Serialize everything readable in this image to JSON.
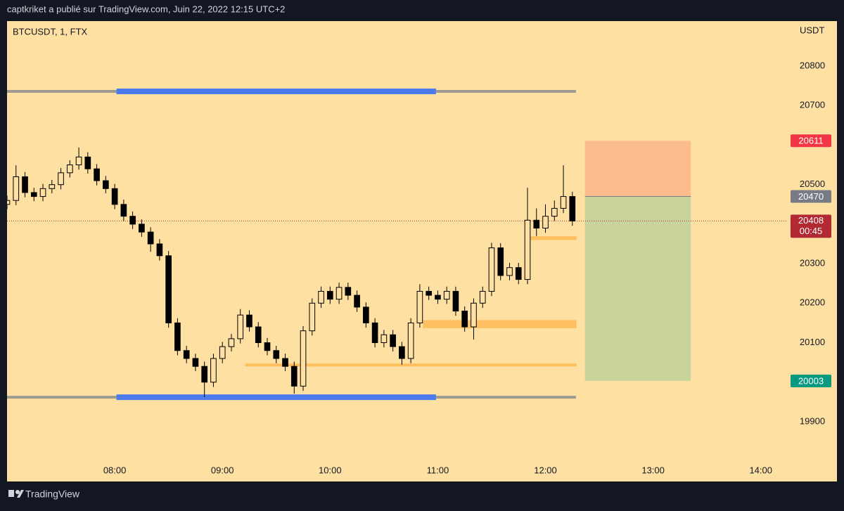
{
  "header": {
    "publisher": "captkriket a publié sur TradingView.com, Juin 22, 2022 12:15 UTC+2"
  },
  "footer": {
    "brand": "TradingView"
  },
  "chart_data": {
    "type": "candlestick",
    "title": "BTCUSDT, 1, FTX",
    "y_axis_label": "USDT",
    "background": "#ffe0a3",
    "candle_color": "#000000",
    "xlim": [
      420,
      855
    ],
    "xticks": [
      {
        "value": 480,
        "label": "08:00"
      },
      {
        "value": 540,
        "label": "09:00"
      },
      {
        "value": 600,
        "label": "10:00"
      },
      {
        "value": 660,
        "label": "11:00"
      },
      {
        "value": 720,
        "label": "12:00"
      },
      {
        "value": 780,
        "label": "13:00"
      },
      {
        "value": 840,
        "label": "14:00"
      }
    ],
    "ylim": [
      19802,
      20914
    ],
    "yticks": [
      19900,
      20100,
      20200,
      20300,
      20500,
      20700,
      20800
    ],
    "x": [
      420,
      425,
      430,
      435,
      440,
      445,
      450,
      455,
      460,
      465,
      470,
      475,
      480,
      485,
      490,
      495,
      500,
      505,
      510,
      515,
      520,
      525,
      530,
      535,
      540,
      545,
      550,
      555,
      560,
      565,
      570,
      575,
      580,
      585,
      590,
      595,
      600,
      605,
      610,
      615,
      620,
      625,
      630,
      635,
      640,
      645,
      650,
      655,
      660,
      665,
      670,
      675,
      680,
      685,
      690,
      695,
      700,
      705,
      710,
      715,
      720,
      725,
      730,
      735
    ],
    "open": [
      20450,
      20460,
      20520,
      20480,
      20470,
      20490,
      20500,
      20530,
      20550,
      20570,
      20540,
      20510,
      20490,
      20450,
      20420,
      20400,
      20380,
      20350,
      20320,
      20150,
      20080,
      20060,
      20040,
      20000,
      20060,
      20090,
      20110,
      20170,
      20140,
      20100,
      20080,
      20060,
      20040,
      19990,
      20130,
      20200,
      20230,
      20210,
      20240,
      20220,
      20190,
      20150,
      20100,
      20120,
      20090,
      20060,
      20150,
      20230,
      20220,
      20210,
      20230,
      20180,
      20140,
      20200,
      20230,
      20340,
      20270,
      20290,
      20260,
      20410,
      20390,
      20420,
      20440,
      20470
    ],
    "high": [
      20472,
      20549,
      20532,
      20492,
      20502,
      20512,
      20542,
      20562,
      20594,
      20582,
      20552,
      20522,
      20502,
      20462,
      20432,
      20412,
      20392,
      20362,
      20332,
      20162,
      20092,
      20072,
      20052,
      20072,
      20102,
      20122,
      20185,
      20182,
      20152,
      20112,
      20092,
      20072,
      20052,
      20142,
      20212,
      20242,
      20242,
      20252,
      20252,
      20232,
      20202,
      20162,
      20132,
      20132,
      20102,
      20162,
      20248,
      20242,
      20232,
      20242,
      20242,
      20192,
      20212,
      20242,
      20353,
      20352,
      20302,
      20302,
      20492,
      20440,
      20450,
      20460,
      20549,
      20482
    ],
    "low": [
      20438,
      20448,
      20468,
      20458,
      20458,
      20478,
      20488,
      20518,
      20538,
      20528,
      20498,
      20478,
      20438,
      20408,
      20388,
      20368,
      20330,
      20308,
      20138,
      20068,
      20048,
      20028,
      19962,
      19988,
      20048,
      20078,
      20098,
      20128,
      20088,
      20068,
      20048,
      20028,
      19971,
      19978,
      20118,
      20188,
      20198,
      20198,
      20208,
      20178,
      20138,
      20088,
      20088,
      20078,
      20044,
      20048,
      20138,
      20208,
      20198,
      20198,
      20168,
      20128,
      20108,
      20188,
      20218,
      20258,
      20258,
      20248,
      20248,
      20370,
      20378,
      20408,
      20428,
      20396
    ],
    "close": [
      20460,
      20520,
      20480,
      20470,
      20490,
      20500,
      20530,
      20550,
      20570,
      20540,
      20510,
      20490,
      20450,
      20420,
      20400,
      20380,
      20350,
      20320,
      20150,
      20080,
      20060,
      20040,
      20000,
      20060,
      20090,
      20110,
      20170,
      20140,
      20100,
      20080,
      20060,
      20040,
      19990,
      20130,
      20200,
      20230,
      20210,
      20240,
      20220,
      20190,
      20150,
      20100,
      20120,
      20090,
      20060,
      20150,
      20230,
      20220,
      20210,
      20230,
      20180,
      20140,
      20200,
      20230,
      20340,
      20270,
      20290,
      20260,
      20410,
      20390,
      20420,
      20440,
      20470,
      20408
    ],
    "levels": [
      {
        "value": 20736,
        "from": 420,
        "to": 737,
        "color": "#9e9a8f",
        "width": 4
      },
      {
        "value": 19962,
        "from": 420,
        "to": 737,
        "color": "#9e9a8f",
        "width": 4
      },
      {
        "value": 20736,
        "from": 481,
        "to": 659,
        "color": "#4b7bec",
        "width": 8
      },
      {
        "value": 19962,
        "from": 481,
        "to": 659,
        "color": "#4b7bec",
        "width": 8
      }
    ],
    "zones": [
      {
        "top": 20368,
        "bottom": 20361,
        "from": 711,
        "to": 737,
        "color": "#ffb74d"
      },
      {
        "top": 20156,
        "bottom": 20138,
        "from": 652,
        "to": 737,
        "color": "#ffb74d"
      },
      {
        "top": 20046,
        "bottom": 20041,
        "from": 553,
        "to": 737,
        "color": "#ffb74d"
      }
    ],
    "position": {
      "entry": 20470,
      "stop": 20611,
      "target": 20003,
      "from": 742,
      "to": 801,
      "stop_color": "#fbbd8d",
      "target_color": "#c8d49c",
      "entry_color": "#787b86",
      "stop_label_color": "#f23645",
      "target_label_color": "#089981"
    },
    "last_price": 20408,
    "countdown": "00:45",
    "last_price_color": "#b22833"
  }
}
